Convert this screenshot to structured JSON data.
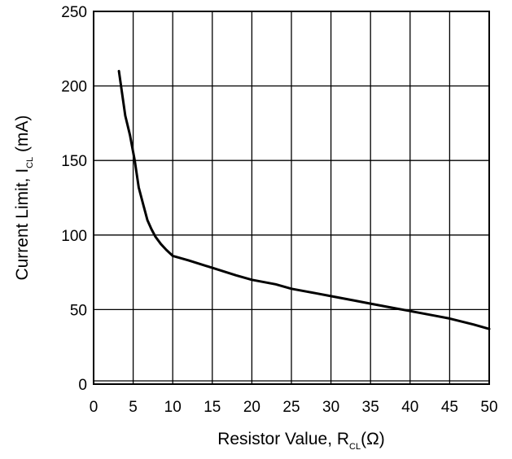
{
  "chart_data": {
    "type": "line",
    "title": "",
    "xlabel": {
      "main": "Resistor Value, R",
      "sub": "CL",
      "unit": "(Ω)"
    },
    "ylabel": {
      "main": "Current Limit, I",
      "sub": "CL",
      "unit": " (mA)"
    },
    "xlim": [
      0,
      50
    ],
    "ylim": [
      0,
      250
    ],
    "x_ticks": [
      0,
      5,
      10,
      15,
      20,
      25,
      30,
      35,
      40,
      45,
      50
    ],
    "y_ticks": [
      0,
      50,
      100,
      150,
      200,
      250
    ],
    "grid": true,
    "legend": "none",
    "series": [
      {
        "x": [
          3.2,
          3.6,
          4.0,
          4.6,
          5.2,
          5.7,
          6.3,
          6.8,
          7.3,
          7.8,
          8.5,
          9.2,
          10,
          12,
          15,
          18,
          20,
          23,
          25,
          28,
          30,
          33,
          35,
          38,
          40,
          43,
          45,
          48,
          50
        ],
        "values": [
          210,
          195,
          180,
          167,
          150,
          132,
          120,
          110,
          104,
          99,
          94,
          90,
          86,
          83,
          78,
          73,
          70,
          67,
          64,
          61,
          59,
          56,
          54,
          51,
          49,
          46,
          44,
          40,
          37
        ],
        "color": "#000000"
      }
    ]
  }
}
